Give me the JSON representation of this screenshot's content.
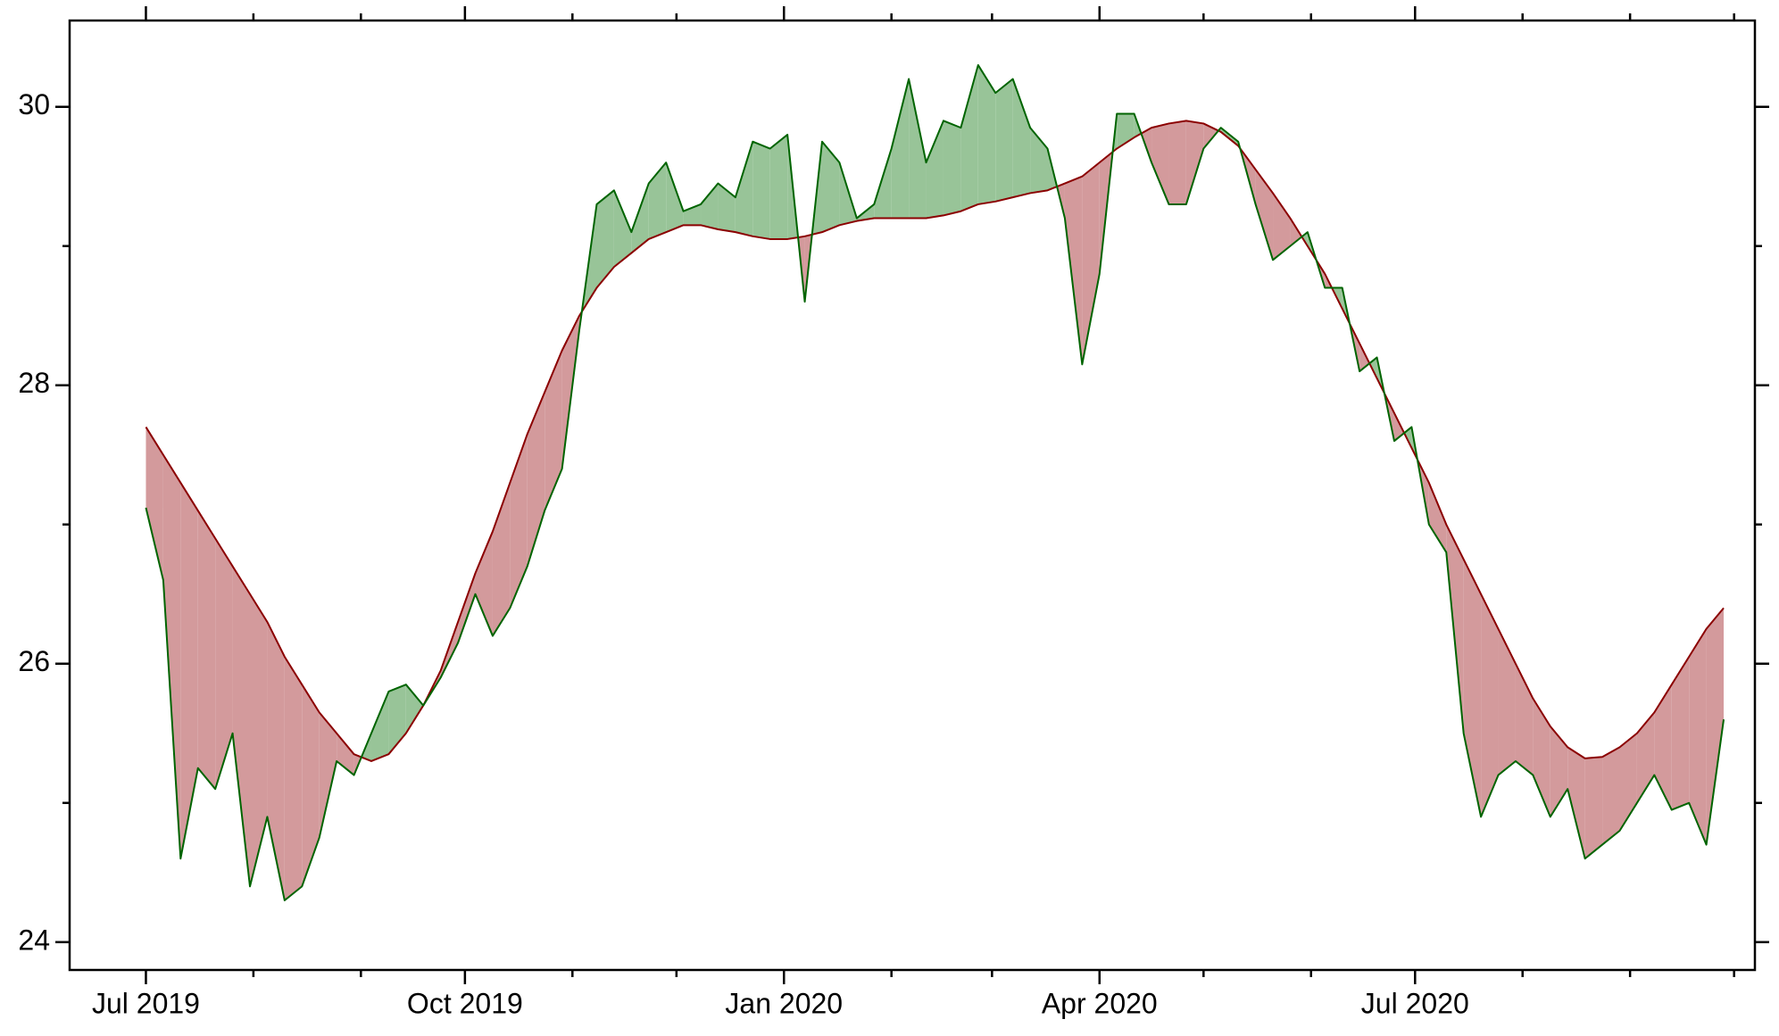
{
  "chart_data": {
    "type": "fill_between",
    "x": [
      "2019-07-01",
      "2019-07-06",
      "2019-07-11",
      "2019-07-16",
      "2019-07-21",
      "2019-07-26",
      "2019-07-31",
      "2019-08-05",
      "2019-08-10",
      "2019-08-15",
      "2019-08-20",
      "2019-08-25",
      "2019-08-30",
      "2019-09-04",
      "2019-09-09",
      "2019-09-14",
      "2019-09-19",
      "2019-09-24",
      "2019-09-29",
      "2019-10-04",
      "2019-10-09",
      "2019-10-14",
      "2019-10-19",
      "2019-10-24",
      "2019-10-29",
      "2019-11-03",
      "2019-11-08",
      "2019-11-13",
      "2019-11-18",
      "2019-11-23",
      "2019-11-28",
      "2019-12-03",
      "2019-12-08",
      "2019-12-13",
      "2019-12-18",
      "2019-12-23",
      "2019-12-28",
      "2020-01-02",
      "2020-01-07",
      "2020-01-12",
      "2020-01-17",
      "2020-01-22",
      "2020-01-27",
      "2020-02-01",
      "2020-02-06",
      "2020-02-11",
      "2020-02-16",
      "2020-02-21",
      "2020-02-26",
      "2020-03-02",
      "2020-03-07",
      "2020-03-12",
      "2020-03-17",
      "2020-03-22",
      "2020-03-27",
      "2020-04-01",
      "2020-04-06",
      "2020-04-11",
      "2020-04-16",
      "2020-04-21",
      "2020-04-26",
      "2020-05-01",
      "2020-05-06",
      "2020-05-11",
      "2020-05-16",
      "2020-05-21",
      "2020-05-26",
      "2020-05-31",
      "2020-06-05",
      "2020-06-10",
      "2020-06-15",
      "2020-06-20",
      "2020-06-25",
      "2020-06-30",
      "2020-07-05",
      "2020-07-10",
      "2020-07-15",
      "2020-07-20",
      "2020-07-25",
      "2020-07-30",
      "2020-08-04",
      "2020-08-09",
      "2020-08-14",
      "2020-08-19",
      "2020-08-24",
      "2020-08-29",
      "2020-09-03",
      "2020-09-08",
      "2020-09-13",
      "2020-09-18",
      "2020-09-23",
      "2020-09-28"
    ],
    "series": [
      {
        "color": "#006400",
        "values": [
          27.12,
          26.6,
          24.6,
          25.25,
          25.1,
          25.5,
          24.4,
          24.9,
          24.3,
          24.4,
          24.75,
          25.3,
          25.2,
          25.5,
          25.8,
          25.85,
          25.7,
          25.9,
          26.15,
          26.5,
          26.2,
          26.4,
          26.7,
          27.1,
          27.4,
          28.4,
          29.3,
          29.4,
          29.1,
          29.45,
          29.6,
          29.25,
          29.3,
          29.45,
          29.35,
          29.75,
          29.7,
          29.8,
          28.6,
          29.75,
          29.6,
          29.2,
          29.3,
          29.7,
          30.2,
          29.6,
          29.9,
          29.85,
          30.3,
          30.1,
          30.2,
          29.85,
          29.7,
          29.2,
          28.15,
          28.8,
          29.95,
          29.95,
          29.6,
          29.3,
          29.3,
          29.7,
          29.85,
          29.75,
          29.3,
          28.9,
          29.0,
          29.1,
          28.7,
          28.7,
          28.1,
          28.2,
          27.6,
          27.7,
          27.0,
          26.8,
          25.5,
          24.9,
          25.2,
          25.3,
          25.2,
          24.9,
          25.1,
          24.6,
          24.7,
          24.8,
          25.0,
          25.2,
          24.95,
          25.0,
          24.7,
          25.6
        ]
      },
      {
        "color": "#8b0000",
        "values": [
          27.7,
          27.5,
          27.3,
          27.1,
          26.9,
          26.7,
          26.5,
          26.3,
          26.05,
          25.85,
          25.65,
          25.5,
          25.35,
          25.3,
          25.35,
          25.5,
          25.7,
          25.95,
          26.3,
          26.65,
          26.95,
          27.3,
          27.65,
          27.95,
          28.25,
          28.5,
          28.7,
          28.85,
          28.95,
          29.05,
          29.1,
          29.15,
          29.15,
          29.12,
          29.1,
          29.07,
          29.05,
          29.05,
          29.07,
          29.1,
          29.15,
          29.18,
          29.2,
          29.2,
          29.2,
          29.2,
          29.22,
          29.25,
          29.3,
          29.32,
          29.35,
          29.38,
          29.4,
          29.45,
          29.5,
          29.6,
          29.7,
          29.78,
          29.85,
          29.88,
          29.9,
          29.88,
          29.82,
          29.72,
          29.55,
          29.38,
          29.2,
          29.0,
          28.8,
          28.55,
          28.3,
          28.05,
          27.8,
          27.55,
          27.3,
          27.0,
          26.75,
          26.5,
          26.25,
          26.0,
          25.75,
          25.55,
          25.4,
          25.32,
          25.33,
          25.4,
          25.5,
          25.65,
          25.85,
          26.05,
          26.25,
          26.4
        ]
      }
    ],
    "fill_above_color": "#98c498",
    "fill_below_color": "#d39a9c",
    "xlim": [
      "2019-06-09",
      "2020-10-07"
    ],
    "xticks": [
      {
        "value": "2019-07-01",
        "label": "Jul 2019"
      },
      {
        "value": "2019-10-01",
        "label": "Oct 2019"
      },
      {
        "value": "2020-01-01",
        "label": "Jan 2020"
      },
      {
        "value": "2020-04-01",
        "label": "Apr 2020"
      },
      {
        "value": "2020-07-01",
        "label": "Jul 2020"
      }
    ],
    "xminorticks": [
      "2019-08-01",
      "2019-09-01",
      "2019-11-01",
      "2019-12-01",
      "2020-02-01",
      "2020-03-01",
      "2020-05-01",
      "2020-06-01",
      "2020-08-01",
      "2020-09-01",
      "2020-10-01"
    ],
    "ylim": [
      23.8,
      30.62
    ],
    "yticks": [
      24,
      26,
      28,
      30
    ],
    "yminorticks": [
      25,
      27,
      29
    ]
  }
}
